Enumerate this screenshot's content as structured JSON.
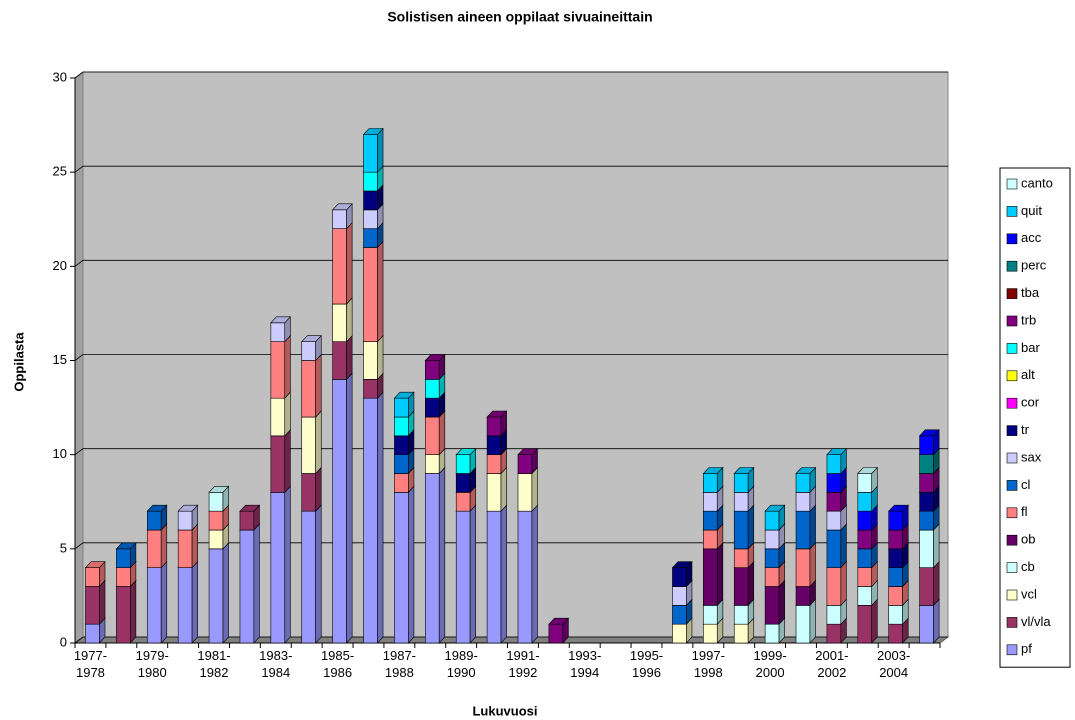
{
  "chart_data": {
    "type": "bar3d_stacked",
    "title": "Solistisen aineen oppilaat sivuaineittain",
    "x_label": "Lukuvuosi",
    "y_label": "Oppilasta",
    "categories": [
      "1977-1978",
      null,
      "1979-1980",
      null,
      "1981-1982",
      null,
      "1983-1984",
      null,
      "1985-1986",
      null,
      "1987-1988",
      null,
      "1989-1990",
      null,
      "1991-1992",
      null,
      "1993-1994",
      null,
      "1995-1996",
      null,
      "1997-1998",
      null,
      "1999-2000",
      null,
      "2001-2002",
      null,
      "2003-2004",
      null
    ],
    "ylim": [
      0,
      30
    ],
    "yticks": [
      0,
      5,
      10,
      15,
      20,
      25,
      30
    ],
    "grid": true,
    "legend": "right",
    "series": [
      {
        "name": "pf",
        "color": "#9999FF",
        "values": [
          1,
          0,
          4,
          4,
          5,
          6,
          8,
          7,
          14,
          13,
          8,
          9,
          7,
          7,
          7,
          0,
          0,
          0,
          0,
          0,
          0,
          0,
          0,
          0,
          0,
          0,
          0,
          2
        ]
      },
      {
        "name": "vl/vla",
        "color": "#993366",
        "values": [
          2,
          3,
          0,
          0,
          0,
          1,
          3,
          2,
          2,
          1,
          0,
          0,
          0,
          0,
          0,
          0,
          0,
          0,
          0,
          0,
          0,
          0,
          0,
          0,
          1,
          2,
          1,
          2
        ]
      },
      {
        "name": "vcl",
        "color": "#FFFFCC",
        "values": [
          0,
          0,
          0,
          0,
          1,
          0,
          2,
          3,
          2,
          2,
          0,
          1,
          0,
          2,
          2,
          0,
          0,
          0,
          0,
          1,
          1,
          1,
          0,
          0,
          0,
          0,
          0,
          0
        ]
      },
      {
        "name": "cb",
        "color": "#CCFFFF",
        "values": [
          0,
          0,
          0,
          0,
          0,
          0,
          0,
          0,
          0,
          0,
          0,
          0,
          0,
          0,
          0,
          0,
          0,
          0,
          0,
          0,
          1,
          1,
          1,
          2,
          1,
          1,
          1,
          2
        ]
      },
      {
        "name": "ob",
        "color": "#660066",
        "values": [
          0,
          0,
          0,
          0,
          0,
          0,
          0,
          0,
          0,
          0,
          0,
          0,
          0,
          0,
          0,
          0,
          0,
          0,
          0,
          0,
          3,
          2,
          2,
          1,
          0,
          0,
          0,
          0
        ]
      },
      {
        "name": "fl",
        "color": "#FF8080",
        "values": [
          1,
          1,
          2,
          2,
          1,
          0,
          3,
          3,
          4,
          5,
          1,
          2,
          1,
          1,
          0,
          0,
          0,
          0,
          0,
          0,
          1,
          1,
          1,
          2,
          2,
          1,
          1,
          0
        ]
      },
      {
        "name": "cl",
        "color": "#0066CC",
        "values": [
          0,
          1,
          1,
          0,
          0,
          0,
          0,
          0,
          0,
          1,
          1,
          0,
          0,
          0,
          0,
          0,
          0,
          0,
          0,
          1,
          1,
          2,
          1,
          2,
          2,
          1,
          1,
          1
        ]
      },
      {
        "name": "sax",
        "color": "#CCCCFF",
        "values": [
          0,
          0,
          0,
          1,
          0,
          0,
          1,
          1,
          1,
          1,
          0,
          0,
          0,
          0,
          0,
          0,
          0,
          0,
          0,
          1,
          1,
          1,
          1,
          1,
          1,
          0,
          0,
          0
        ]
      },
      {
        "name": "tr",
        "color": "#000080",
        "values": [
          0,
          0,
          0,
          0,
          0,
          0,
          0,
          0,
          0,
          1,
          1,
          1,
          1,
          1,
          0,
          0,
          0,
          0,
          0,
          1,
          0,
          0,
          0,
          0,
          0,
          0,
          1,
          1
        ]
      },
      {
        "name": "cor",
        "color": "#FF00FF",
        "values": [
          0,
          0,
          0,
          0,
          0,
          0,
          0,
          0,
          0,
          0,
          0,
          0,
          0,
          0,
          0,
          0,
          0,
          0,
          0,
          0,
          0,
          0,
          0,
          0,
          0,
          0,
          0,
          0
        ]
      },
      {
        "name": "alt",
        "color": "#FFFF00",
        "values": [
          0,
          0,
          0,
          0,
          0,
          0,
          0,
          0,
          0,
          0,
          0,
          0,
          0,
          0,
          0,
          0,
          0,
          0,
          0,
          0,
          0,
          0,
          0,
          0,
          0,
          0,
          0,
          0
        ]
      },
      {
        "name": "bar",
        "color": "#00FFFF",
        "values": [
          0,
          0,
          0,
          0,
          0,
          0,
          0,
          0,
          0,
          1,
          1,
          1,
          1,
          0,
          0,
          0,
          0,
          0,
          0,
          0,
          0,
          0,
          0,
          0,
          0,
          0,
          0,
          0
        ]
      },
      {
        "name": "trb",
        "color": "#800080",
        "values": [
          0,
          0,
          0,
          0,
          0,
          0,
          0,
          0,
          0,
          0,
          0,
          1,
          0,
          1,
          1,
          1,
          0,
          0,
          0,
          0,
          0,
          0,
          0,
          0,
          1,
          1,
          1,
          1
        ]
      },
      {
        "name": "tba",
        "color": "#800000",
        "values": [
          0,
          0,
          0,
          0,
          0,
          0,
          0,
          0,
          0,
          0,
          0,
          0,
          0,
          0,
          0,
          0,
          0,
          0,
          0,
          0,
          0,
          0,
          0,
          0,
          0,
          0,
          0,
          0
        ]
      },
      {
        "name": "perc",
        "color": "#008080",
        "values": [
          0,
          0,
          0,
          0,
          0,
          0,
          0,
          0,
          0,
          0,
          0,
          0,
          0,
          0,
          0,
          0,
          0,
          0,
          0,
          0,
          0,
          0,
          0,
          0,
          0,
          0,
          0,
          1
        ]
      },
      {
        "name": "acc",
        "color": "#0000FF",
        "values": [
          0,
          0,
          0,
          0,
          0,
          0,
          0,
          0,
          0,
          0,
          0,
          0,
          0,
          0,
          0,
          0,
          0,
          0,
          0,
          0,
          0,
          0,
          0,
          0,
          1,
          1,
          1,
          1
        ]
      },
      {
        "name": "quit",
        "color": "#00CCFF",
        "values": [
          0,
          0,
          0,
          0,
          0,
          0,
          0,
          0,
          0,
          2,
          1,
          0,
          0,
          0,
          0,
          0,
          0,
          0,
          0,
          0,
          1,
          1,
          1,
          1,
          1,
          1,
          0,
          0
        ]
      },
      {
        "name": "canto",
        "color": "#CCFFFF",
        "values": [
          0,
          0,
          0,
          0,
          1,
          0,
          0,
          0,
          0,
          0,
          0,
          0,
          0,
          0,
          0,
          0,
          0,
          0,
          0,
          0,
          0,
          0,
          0,
          0,
          0,
          1,
          0,
          0
        ]
      }
    ]
  }
}
